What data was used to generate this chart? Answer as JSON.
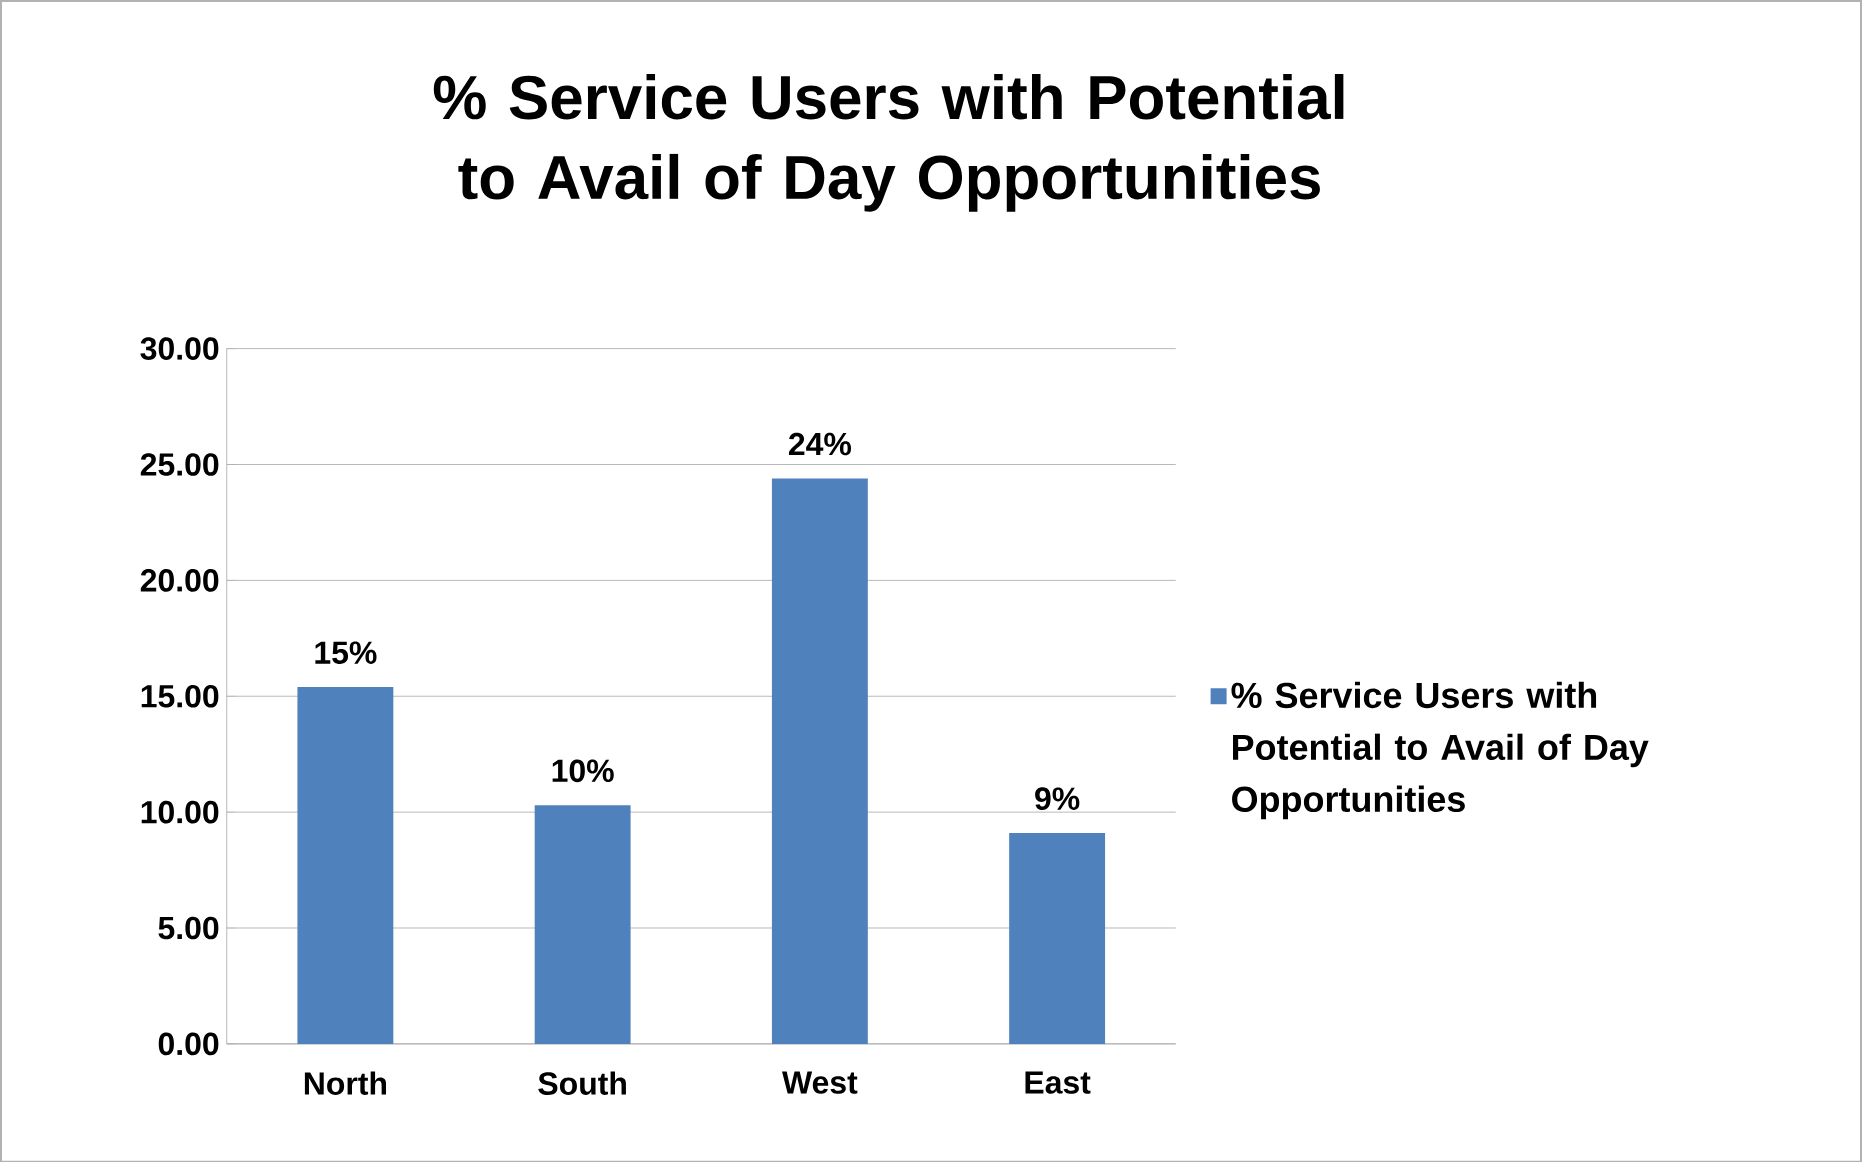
{
  "chart_data": {
    "type": "bar",
    "title": "% Service Users with Potential to Avail of Day Opportunities",
    "categories": [
      "North",
      "South",
      "West",
      "East"
    ],
    "series": [
      {
        "name": "% Service Users with Potential to Avail of Day Opportunities",
        "color": "#4f81bd",
        "values": [
          15.4,
          10.3,
          24.4,
          9.1
        ],
        "value_labels": [
          "15%",
          "10%",
          "24%",
          "9%"
        ]
      }
    ],
    "ylim": [
      0,
      30
    ],
    "yticks": [
      {
        "value": 0,
        "label": "0.00"
      },
      {
        "value": 5,
        "label": "5.00"
      },
      {
        "value": 10,
        "label": "10.00"
      },
      {
        "value": 15,
        "label": "15.00"
      },
      {
        "value": 20,
        "label": "20.00"
      },
      {
        "value": 25,
        "label": "25.00"
      },
      {
        "value": 30,
        "label": "30.00"
      }
    ],
    "grid": "y",
    "legend": "right"
  }
}
